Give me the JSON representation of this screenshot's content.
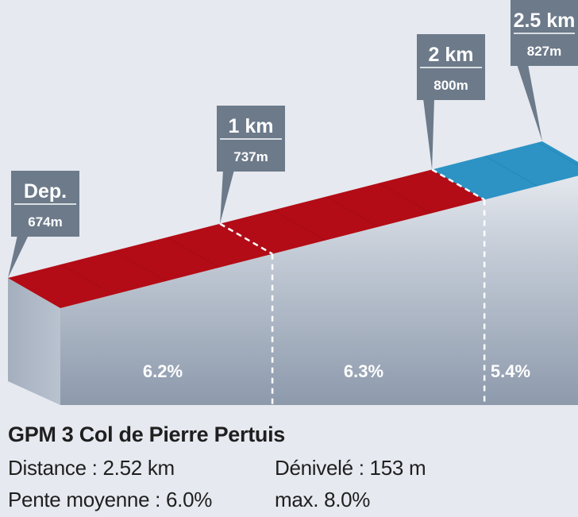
{
  "chart_data": {
    "type": "area",
    "title": "GPM 3 Col de Pierre Pertuis",
    "xlabel": "",
    "ylabel": "",
    "markers": [
      {
        "label": "Dep.",
        "elev": "674m",
        "km": 0,
        "alt": 674
      },
      {
        "label": "1 km",
        "elev": "737m",
        "km": 1,
        "alt": 737
      },
      {
        "label": "2 km",
        "elev": "800m",
        "km": 2,
        "alt": 800
      },
      {
        "label": "2.5 km",
        "elev": "827m",
        "km": 2.52,
        "alt": 827
      }
    ],
    "segments": [
      {
        "from_km": 0,
        "to_km": 1,
        "gradient": "6.2%",
        "color": "#b30c16"
      },
      {
        "from_km": 1,
        "to_km": 2,
        "gradient": "6.3%",
        "color": "#b30c16"
      },
      {
        "from_km": 2,
        "to_km": 2.52,
        "gradient": "5.4%",
        "color": "#2c93c4"
      }
    ]
  },
  "colors": {
    "red": "#b30c16",
    "blue": "#2c93c4",
    "label_box": "#6c7a8a",
    "wall": "#9aa6b6"
  },
  "info": {
    "title": "GPM 3 Col de Pierre Pertuis",
    "distance": "Distance : 2.52 km",
    "denivele": "Dénivelé : 153 m",
    "pente": "Pente moyenne : 6.0%",
    "max": "max. 8.0%"
  }
}
